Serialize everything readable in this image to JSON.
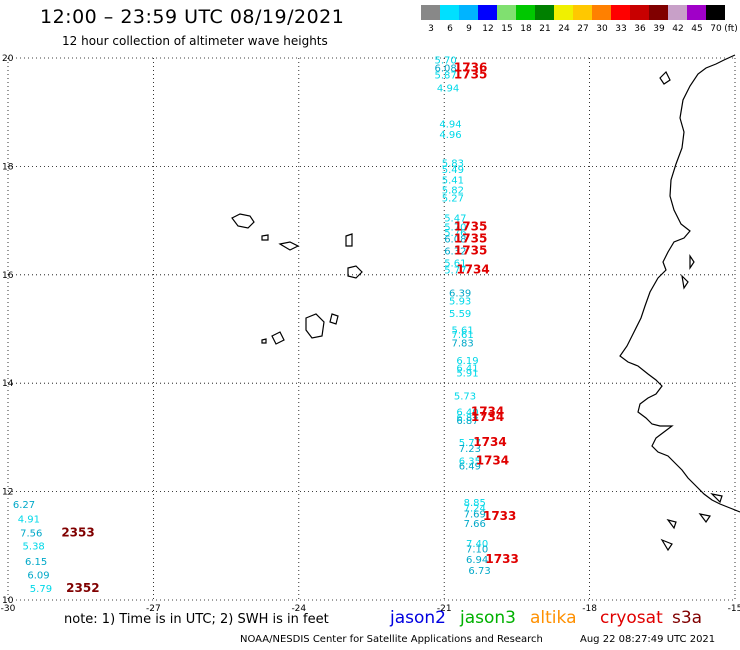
{
  "header": {
    "title": "12:00 – 23:59 UTC 08/19/2021",
    "subtitle": "12 hour collection of altimeter wave heights"
  },
  "colorbar": {
    "unit": "(ft)",
    "swatches": [
      {
        "color": "#888888",
        "label": "3"
      },
      {
        "color": "#00e0ff",
        "label": "6"
      },
      {
        "color": "#00b4ff",
        "label": "9"
      },
      {
        "color": "#0000ff",
        "label": "12"
      },
      {
        "color": "#80e070",
        "label": "15"
      },
      {
        "color": "#00c800",
        "label": "18"
      },
      {
        "color": "#008000",
        "label": "21"
      },
      {
        "color": "#f0f000",
        "label": "24"
      },
      {
        "color": "#ffc800",
        "label": "27"
      },
      {
        "color": "#ff8000",
        "label": "30"
      },
      {
        "color": "#ff0000",
        "label": "33"
      },
      {
        "color": "#c80000",
        "label": "36"
      },
      {
        "color": "#800000",
        "label": "39"
      },
      {
        "color": "#c8a0c8",
        "label": "42"
      },
      {
        "color": "#a000c8",
        "label": "45"
      },
      {
        "color": "#000000",
        "label": "70"
      }
    ]
  },
  "axes": {
    "lon_ticks": [
      "-30",
      "-27",
      "-24",
      "-21",
      "-18",
      "-15"
    ],
    "lat_ticks": [
      "20",
      "18",
      "16",
      "14",
      "12",
      "10"
    ],
    "lon_range": [
      -30,
      -15
    ],
    "lat_range": [
      10,
      20
    ]
  },
  "observations": [
    {
      "lon": -21.2,
      "lat": 19.9,
      "text": "5.70",
      "color": "#00d8e8"
    },
    {
      "lon": -21.2,
      "lat": 19.75,
      "text": "6.08",
      "color": "#00a8c8"
    },
    {
      "lon": -21.2,
      "lat": 19.62,
      "text": "5.87",
      "color": "#00d8e8"
    },
    {
      "lon": -21.15,
      "lat": 19.38,
      "text": "4.94",
      "color": "#00d8e8"
    },
    {
      "lon": -21.1,
      "lat": 18.72,
      "text": "4.94",
      "color": "#00d8e8"
    },
    {
      "lon": -21.1,
      "lat": 18.52,
      "text": "4.96",
      "color": "#00d8e8"
    },
    {
      "lon": -21.05,
      "lat": 18.0,
      "text": "5.83",
      "color": "#00d8e8"
    },
    {
      "lon": -21.05,
      "lat": 17.88,
      "text": "5.49",
      "color": "#00d8e8"
    },
    {
      "lon": -21.05,
      "lat": 17.68,
      "text": "5.41",
      "color": "#00d8e8"
    },
    {
      "lon": -21.05,
      "lat": 17.5,
      "text": "5.82",
      "color": "#00d8e8"
    },
    {
      "lon": -21.05,
      "lat": 17.35,
      "text": "5.27",
      "color": "#00d8e8"
    },
    {
      "lon": -21.0,
      "lat": 16.98,
      "text": "5.47",
      "color": "#00d8e8"
    },
    {
      "lon": -21.0,
      "lat": 16.82,
      "text": "5.70",
      "color": "#00d8e8"
    },
    {
      "lon": -21.0,
      "lat": 16.72,
      "text": "5.76",
      "color": "#00d8e8"
    },
    {
      "lon": -21.0,
      "lat": 16.6,
      "text": "6.08",
      "color": "#00a8c8"
    },
    {
      "lon": -21.0,
      "lat": 16.37,
      "text": "6.32",
      "color": "#00a8c8"
    },
    {
      "lon": -21.0,
      "lat": 16.15,
      "text": "5.61",
      "color": "#00d8e8"
    },
    {
      "lon": -21.0,
      "lat": 16.02,
      "text": "5.77",
      "color": "#00d8e8"
    },
    {
      "lon": -20.9,
      "lat": 15.6,
      "text": "6.39",
      "color": "#00a8c8"
    },
    {
      "lon": -20.9,
      "lat": 15.45,
      "text": "5.93",
      "color": "#00d8e8"
    },
    {
      "lon": -20.9,
      "lat": 15.22,
      "text": "5.59",
      "color": "#00d8e8"
    },
    {
      "lon": -20.85,
      "lat": 14.92,
      "text": "5.61",
      "color": "#00d8e8"
    },
    {
      "lon": -20.85,
      "lat": 14.83,
      "text": "7.61",
      "color": "#00d8e8"
    },
    {
      "lon": -20.85,
      "lat": 14.68,
      "text": "7.83",
      "color": "#00a8c8"
    },
    {
      "lon": -20.75,
      "lat": 14.35,
      "text": "6.19",
      "color": "#00d8e8"
    },
    {
      "lon": -20.75,
      "lat": 14.22,
      "text": "6.41",
      "color": "#00d8e8"
    },
    {
      "lon": -20.75,
      "lat": 14.12,
      "text": "5.91",
      "color": "#00d8e8"
    },
    {
      "lon": -20.8,
      "lat": 13.7,
      "text": "5.73",
      "color": "#00d8e8"
    },
    {
      "lon": -20.75,
      "lat": 13.4,
      "text": "6.40",
      "color": "#00d8e8"
    },
    {
      "lon": -20.75,
      "lat": 13.3,
      "text": "6.87",
      "color": "#00d8e8"
    },
    {
      "lon": -20.75,
      "lat": 13.25,
      "text": "6.87",
      "color": "#00a8c8"
    },
    {
      "lon": -20.7,
      "lat": 12.84,
      "text": "5.77",
      "color": "#00d8e8"
    },
    {
      "lon": -20.7,
      "lat": 12.73,
      "text": "7.23",
      "color": "#00a8c8"
    },
    {
      "lon": -20.7,
      "lat": 12.5,
      "text": "6.35",
      "color": "#00d8e8"
    },
    {
      "lon": -20.7,
      "lat": 12.41,
      "text": "6.49",
      "color": "#00a8c8"
    },
    {
      "lon": -20.6,
      "lat": 11.73,
      "text": "8.85",
      "color": "#00d8e8"
    },
    {
      "lon": -20.6,
      "lat": 11.63,
      "text": "7.24",
      "color": "#00d8e8"
    },
    {
      "lon": -20.6,
      "lat": 11.52,
      "text": "7.69",
      "color": "#00a8c8"
    },
    {
      "lon": -20.6,
      "lat": 11.35,
      "text": "7.66",
      "color": "#00a8c8"
    },
    {
      "lon": -20.55,
      "lat": 10.98,
      "text": "7.40",
      "color": "#00d8e8"
    },
    {
      "lon": -20.55,
      "lat": 10.88,
      "text": "7.10",
      "color": "#00a8c8"
    },
    {
      "lon": -20.55,
      "lat": 10.68,
      "text": "6.94",
      "color": "#00a8c8"
    },
    {
      "lon": -20.5,
      "lat": 10.48,
      "text": "6.73",
      "color": "#00a8c8"
    },
    {
      "lon": -29.9,
      "lat": 11.7,
      "text": "6.27",
      "color": "#00a8c8"
    },
    {
      "lon": -29.8,
      "lat": 11.43,
      "text": "4.91",
      "color": "#00d8e8"
    },
    {
      "lon": -29.75,
      "lat": 11.17,
      "text": "7.56",
      "color": "#00a8c8"
    },
    {
      "lon": -29.7,
      "lat": 10.93,
      "text": "5.38",
      "color": "#00d8e8"
    },
    {
      "lon": -29.65,
      "lat": 10.65,
      "text": "6.15",
      "color": "#00a8c8"
    },
    {
      "lon": -29.6,
      "lat": 10.4,
      "text": "6.09",
      "color": "#00a8c8"
    },
    {
      "lon": -29.55,
      "lat": 10.15,
      "text": "5.79",
      "color": "#00d8e8"
    }
  ],
  "time_labels": [
    {
      "lon": -20.8,
      "lat": 19.75,
      "text": "1736",
      "color": "#e00000"
    },
    {
      "lon": -20.8,
      "lat": 19.62,
      "text": "1735",
      "color": "#e00000"
    },
    {
      "lon": -20.8,
      "lat": 16.82,
      "text": "1735",
      "color": "#e00000"
    },
    {
      "lon": -20.8,
      "lat": 16.6,
      "text": "1735",
      "color": "#e00000"
    },
    {
      "lon": -20.8,
      "lat": 16.37,
      "text": "1735",
      "color": "#e00000"
    },
    {
      "lon": -20.75,
      "lat": 16.02,
      "text": "1734",
      "color": "#e00000"
    },
    {
      "lon": -20.45,
      "lat": 13.4,
      "text": "1734",
      "color": "#e00000"
    },
    {
      "lon": -20.45,
      "lat": 13.3,
      "text": "1734",
      "color": "#e00000"
    },
    {
      "lon": -20.4,
      "lat": 12.84,
      "text": "1734",
      "color": "#e00000"
    },
    {
      "lon": -20.35,
      "lat": 12.5,
      "text": "1734",
      "color": "#e00000"
    },
    {
      "lon": -20.2,
      "lat": 11.48,
      "text": "1733",
      "color": "#e00000"
    },
    {
      "lon": -20.15,
      "lat": 10.68,
      "text": "1733",
      "color": "#e00000"
    },
    {
      "lon": -28.9,
      "lat": 11.17,
      "text": "2353",
      "color": "#800000"
    },
    {
      "lon": -28.8,
      "lat": 10.15,
      "text": "2352",
      "color": "#800000"
    }
  ],
  "footer": {
    "note": "note: 1) Time is in UTC; 2) SWH is in feet",
    "legend": [
      {
        "label": "jason2",
        "color": "#0000e0"
      },
      {
        "label": "jason3",
        "color": "#00b000"
      },
      {
        "label": "altika",
        "color": "#ff9000"
      },
      {
        "label": "cryosat",
        "color": "#e00000"
      },
      {
        "label": "s3a",
        "color": "#800000"
      }
    ],
    "credit": "NOAA/NESDIS Center for Satellite Applications and Research",
    "generated": "Aug 22 08:27:49 UTC 2021"
  }
}
